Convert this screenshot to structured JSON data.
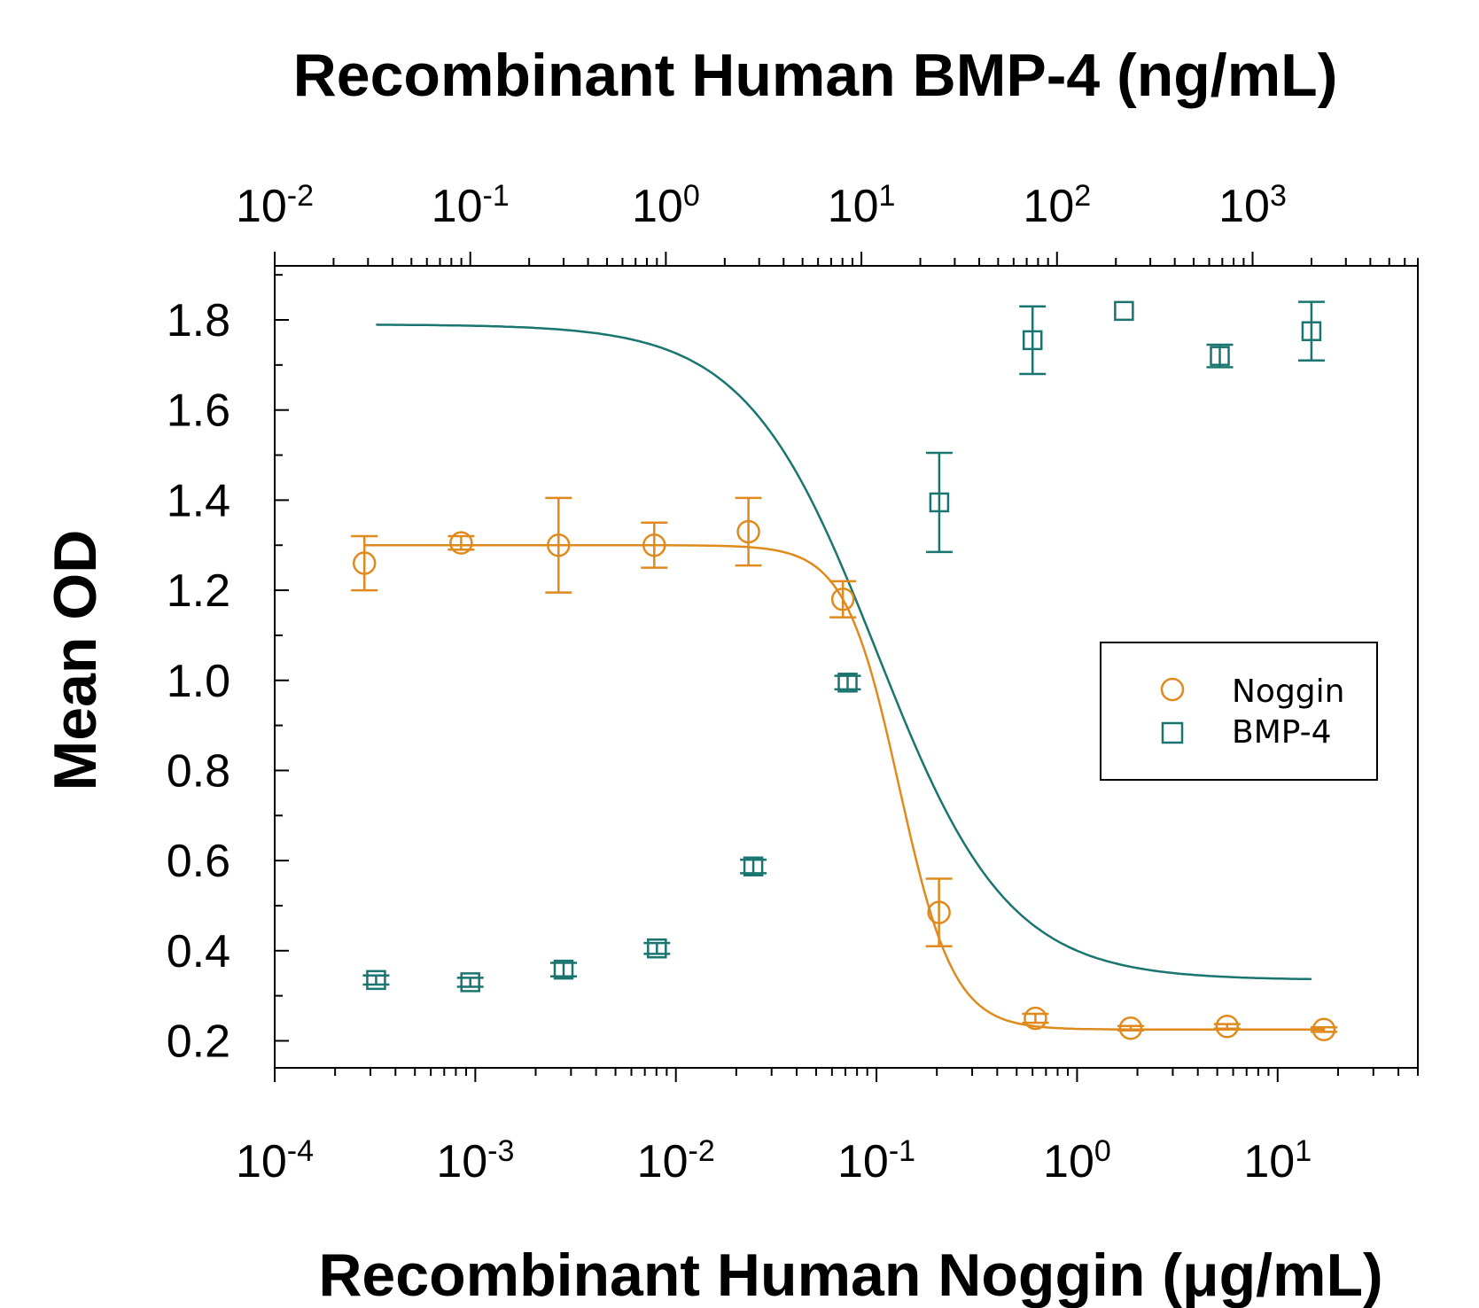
{
  "chart_data": {
    "type": "scatter",
    "title_top_axis": "Recombinant Human BMP-4 (ng/mL)",
    "xlabel": "Recombinant Human Noggin (μg/mL)",
    "ylabel": "Mean OD",
    "x_scale": "log",
    "x_top_scale": "log",
    "xlim": [
      0.0001,
      50
    ],
    "x_top_lim": [
      0.01,
      7000
    ],
    "ylim": [
      0.14,
      1.92
    ],
    "x_ticks": [
      0.0001,
      0.001,
      0.01,
      0.1,
      1,
      10
    ],
    "x_tick_labels": [
      {
        "base": "10",
        "exp": "-4"
      },
      {
        "base": "10",
        "exp": "-3"
      },
      {
        "base": "10",
        "exp": "-2"
      },
      {
        "base": "10",
        "exp": "-1"
      },
      {
        "base": "10",
        "exp": "0"
      },
      {
        "base": "10",
        "exp": "1"
      }
    ],
    "x_top_ticks": [
      0.01,
      0.1,
      1,
      10,
      100,
      1000
    ],
    "x_top_tick_labels": [
      {
        "base": "10",
        "exp": "-2"
      },
      {
        "base": "10",
        "exp": "-1"
      },
      {
        "base": "10",
        "exp": "0"
      },
      {
        "base": "10",
        "exp": "1"
      },
      {
        "base": "10",
        "exp": "2"
      },
      {
        "base": "10",
        "exp": "3"
      }
    ],
    "y_ticks": [
      0.2,
      0.4,
      0.6,
      0.8,
      1.0,
      1.2,
      1.4,
      1.6,
      1.8
    ],
    "y_tick_labels": [
      "0.2",
      "0.4",
      "0.6",
      "0.8",
      "1.0",
      "1.2",
      "1.4",
      "1.6",
      "1.8"
    ],
    "legend_position": "middle-right",
    "series": [
      {
        "name": "Noggin",
        "axis": "bottom",
        "marker": "circle",
        "color": "#E08A1E",
        "points": [
          {
            "x": 0.00028,
            "y": 1.26,
            "err": 0.06
          },
          {
            "x": 0.00085,
            "y": 1.305,
            "err": 0.015
          },
          {
            "x": 0.0026,
            "y": 1.3,
            "err": 0.105
          },
          {
            "x": 0.0078,
            "y": 1.3,
            "err": 0.05
          },
          {
            "x": 0.023,
            "y": 1.33,
            "err": 0.075
          },
          {
            "x": 0.068,
            "y": 1.18,
            "err": 0.04
          },
          {
            "x": 0.205,
            "y": 0.485,
            "err": 0.075
          },
          {
            "x": 0.62,
            "y": 0.25,
            "err": 0.01
          },
          {
            "x": 1.85,
            "y": 0.228,
            "err": 0.005
          },
          {
            "x": 5.6,
            "y": 0.232,
            "err": 0.005
          },
          {
            "x": 17,
            "y": 0.225,
            "err": 0.005
          }
        ],
        "fit": {
          "top": 1.3,
          "bottom": 0.225,
          "ec50": 0.13,
          "hill": 3.2
        }
      },
      {
        "name": "BMP-4",
        "axis": "top",
        "marker": "square",
        "color": "#1A7570",
        "points": [
          {
            "x": 0.033,
            "y": 0.335,
            "err": 0.01
          },
          {
            "x": 0.1,
            "y": 0.33,
            "err": 0.01
          },
          {
            "x": 0.3,
            "y": 0.358,
            "err": 0.015
          },
          {
            "x": 0.9,
            "y": 0.405,
            "err": 0.012
          },
          {
            "x": 2.8,
            "y": 0.587,
            "err": 0.015
          },
          {
            "x": 8.5,
            "y": 0.995,
            "err": 0.015
          },
          {
            "x": 25,
            "y": 1.395,
            "err": 0.11
          },
          {
            "x": 75,
            "y": 1.755,
            "err": 0.075
          },
          {
            "x": 220,
            "y": 1.82,
            "err": 0.0
          },
          {
            "x": 680,
            "y": 1.72,
            "err": 0.025
          },
          {
            "x": 2000,
            "y": 1.775,
            "err": 0.065
          }
        ],
        "fit": {
          "top": 1.79,
          "bottom": 0.335,
          "ec50": 12,
          "hill": 1.3
        }
      }
    ]
  }
}
